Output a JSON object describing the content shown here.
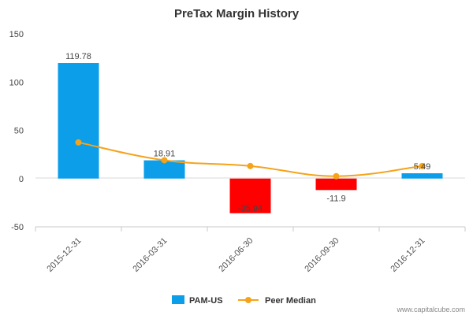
{
  "chart_data": {
    "type": "bar",
    "title": "PreTax Margin History",
    "categories": [
      "2015-12-31",
      "2016-03-31",
      "2016-06-30",
      "2016-09-30",
      "2016-12-31"
    ],
    "series": [
      {
        "name": "PAM-US",
        "type": "bar",
        "values": [
          119.78,
          18.91,
          -35.94,
          -11.9,
          5.49
        ],
        "data_labels": [
          "119.78",
          "18.91",
          "-35.94",
          "-11.9",
          "5.49"
        ],
        "color_positive": "#0c9ee8",
        "color_negative": "#ff0000"
      },
      {
        "name": "Peer Median",
        "type": "line",
        "values": [
          37.5,
          19.0,
          13.0,
          2.5,
          13.0
        ],
        "color": "#f5a31a"
      }
    ],
    "yticks": [
      150,
      100,
      50,
      0,
      -50
    ],
    "ylim": [
      -50,
      150
    ],
    "grid": false,
    "legend_position": "bottom"
  },
  "watermark": "www.capitalcube.com"
}
